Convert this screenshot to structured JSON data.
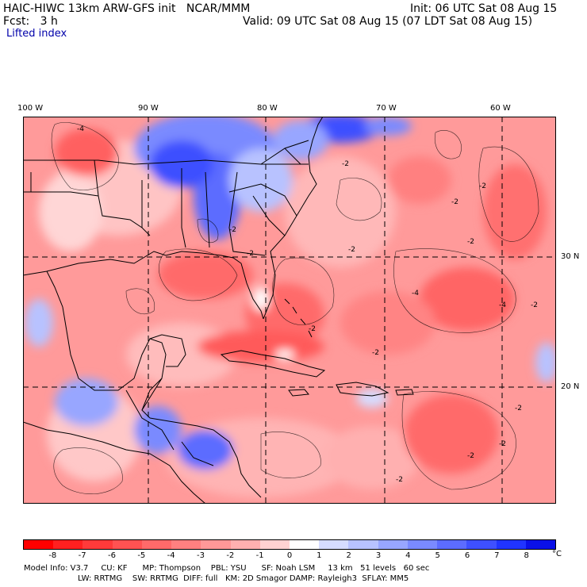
{
  "header": {
    "model_title": "HAIC-HIWC 13km ARW-GFS init   NCAR/MMM",
    "fcst_line": "Fcst:   3 h",
    "field_name": "Lifted index",
    "init_line": "Init: 06 UTC Sat 08 Aug 15",
    "valid_line": "Valid: 09 UTC Sat 08 Aug 15 (07 LDT Sat 08 Aug 15)"
  },
  "longitude_labels": [
    "100 W",
    "90 W",
    "80 W",
    "70 W",
    "60 W"
  ],
  "latitude_labels": [
    "30 N",
    "20 N"
  ],
  "colorbar": {
    "ticks": [
      "-8",
      "-7",
      "-6",
      "-5",
      "-4",
      "-3",
      "-2",
      "-1",
      "0",
      "1",
      "2",
      "3",
      "4",
      "5",
      "6",
      "7",
      "8"
    ],
    "unit": "°C",
    "colors": [
      "#ff0000",
      "#ff2020",
      "#ff3a3a",
      "#ff5252",
      "#ff6a6a",
      "#ff8080",
      "#ff9898",
      "#ffb0b0",
      "#ffd2d2",
      "#ffffff",
      "#d6dcff",
      "#b8c2ff",
      "#98a6ff",
      "#7a8aff",
      "#5c6cff",
      "#3e50ff",
      "#2034ff",
      "#0a10e8"
    ]
  },
  "model_info": {
    "line1": "Model Info: V3.7     CU: KF      MP: Thompson    PBL: YSU      SF: Noah LSM     13 km   51 levels   60 sec",
    "line2": "LW: RRTMG    SW: RRTMG  DIFF: full   KM: 2D Smagor DAMP: Rayleigh3  SFLAY: MM5"
  },
  "contour_labels": [
    "-4",
    "-2",
    "-2",
    "-2",
    "-2",
    "-2",
    "-2",
    "-2",
    "-2",
    "-4",
    "-4",
    "-2",
    "-2",
    "-2",
    "-2",
    "-2",
    "-2"
  ]
}
